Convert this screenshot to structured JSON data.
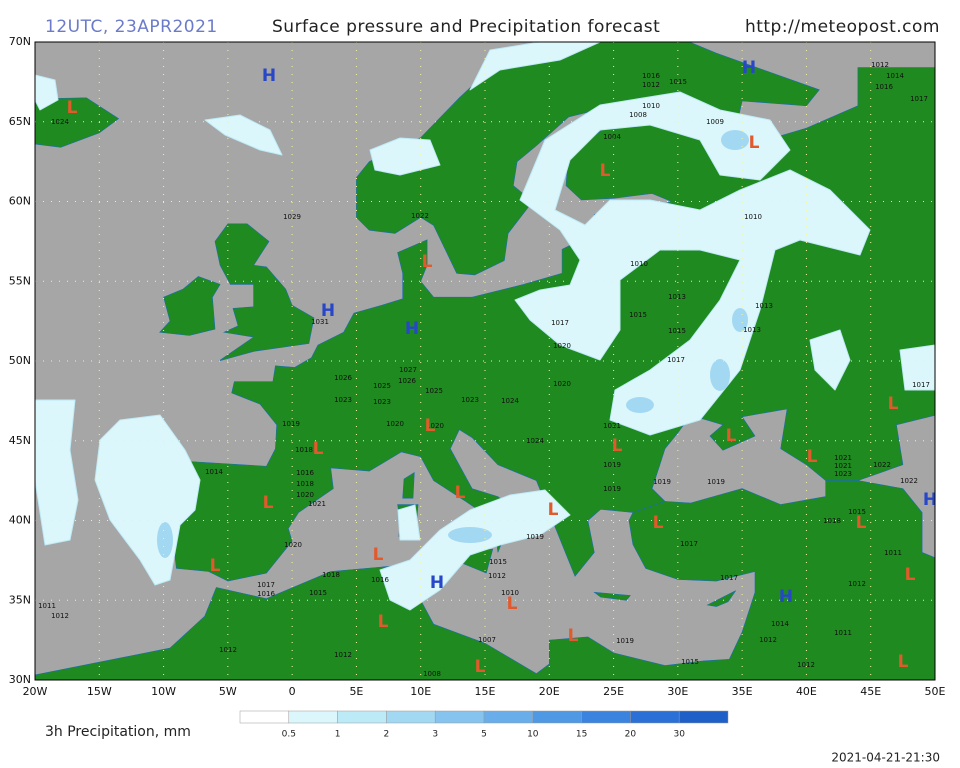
{
  "header": {
    "time": "12UTC, 23APR2021",
    "title": "Surface pressure and Precipitation forecast",
    "url": "http://meteopost.com"
  },
  "lat_labels": [
    "70N",
    "65N",
    "60N",
    "55N",
    "50N",
    "45N",
    "40N",
    "35N",
    "30N"
  ],
  "lon_labels": [
    "20W",
    "15W",
    "10W",
    "5W",
    "0",
    "5E",
    "10E",
    "15E",
    "20E",
    "25E",
    "30E",
    "35E",
    "40E",
    "45E",
    "50E"
  ],
  "pressure_centers": [
    "H",
    "L",
    "H",
    "L",
    "L",
    "H",
    "L",
    "H",
    "L",
    "L",
    "L",
    "L",
    "L",
    "H",
    "L",
    "L",
    "L",
    "L",
    "L",
    "L",
    "L",
    "L",
    "H",
    "L",
    "L",
    "L",
    "L",
    "L",
    "H",
    "L"
  ],
  "center_colors": {
    "H": "#2747c8",
    "L": "#e2592b"
  },
  "isobar_labels": [
    1029,
    1031,
    1027,
    1026,
    1025,
    1026,
    1025,
    1023,
    1023,
    1023,
    1024,
    1020,
    1019,
    1020,
    1020,
    1018,
    1014,
    1016,
    1018,
    1020,
    1021,
    1020,
    1018,
    1016,
    1017,
    1016,
    1015,
    1011,
    1012,
    1012,
    1012,
    1008,
    1007,
    1015,
    1012,
    1010,
    1019,
    1019,
    1019,
    1019,
    1019,
    1017,
    1017,
    1019,
    1015,
    1014,
    1012,
    1012,
    1011,
    1012,
    1011,
    1018,
    1015,
    1022,
    1022,
    1021,
    1021,
    1023,
    1017,
    1017,
    1015,
    1013,
    1013,
    1013,
    1015,
    1010,
    1010,
    1009,
    1004,
    1008,
    1010,
    1012,
    1016,
    1015,
    1012,
    1014,
    1016,
    1017,
    1024,
    1022,
    1017,
    1020,
    1021,
    1024
  ],
  "legend": {
    "title": "3h Precipitation, mm",
    "labels": [
      0.5,
      1,
      2,
      3,
      5,
      10,
      15,
      20,
      30
    ],
    "colors": [
      "#ffffff",
      "#dcf7fb",
      "#bdeaf7",
      "#a3d8f3",
      "#86c3ee",
      "#69aeea",
      "#4f98e4",
      "#3a84df",
      "#2b70d6",
      "#1f5fc8"
    ]
  },
  "timestamp": "2021-04-21-21:30"
}
